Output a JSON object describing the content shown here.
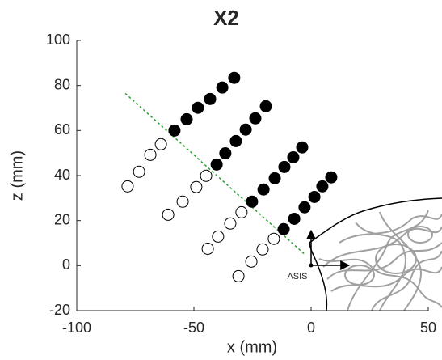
{
  "chart_data": {
    "type": "scatter",
    "title": "X2",
    "xlabel": "x (mm)",
    "ylabel": "z (mm)",
    "xlim": [
      -100,
      50
    ],
    "ylim": [
      -20,
      100
    ],
    "xticks": [
      -100,
      -50,
      0,
      50
    ],
    "yticks": [
      -20,
      0,
      20,
      40,
      60,
      80,
      100
    ],
    "annotation": "ASIS",
    "series": [
      {
        "filled": false,
        "color": "#000000",
        "x": [
          -78.3,
          -73.4,
          -68.6,
          -64.1,
          -61.0,
          -54.8,
          -49.0,
          -44.8,
          -44.1,
          -39.7,
          -34.5,
          -29.7,
          -31.0,
          -25.5,
          -20.7,
          -15.9
        ],
        "y": [
          35.2,
          41.7,
          49.2,
          53.9,
          22.6,
          28.4,
          34.9,
          39.9,
          7.5,
          12.9,
          18.7,
          23.7,
          -4.7,
          1.8,
          7.2,
          11.9
        ]
      },
      {
        "filled": true,
        "color": "#000000",
        "x": [
          -58.3,
          -53.1,
          -48.3,
          -43.1,
          -37.9,
          -32.8,
          -40.3,
          -36.6,
          -32.1,
          -27.9,
          -23.8,
          -19.3,
          -25.2,
          -20.3,
          -15.5,
          -11.4,
          -7.6,
          -3.8,
          -11.7,
          -7.2,
          -2.8,
          1.4,
          4.8,
          8.6
        ],
        "y": [
          60.0,
          65.0,
          70.1,
          74.0,
          79.1,
          83.4,
          44.9,
          49.9,
          55.3,
          60.4,
          65.4,
          70.8,
          28.4,
          33.8,
          38.8,
          43.8,
          48.1,
          52.5,
          16.2,
          20.8,
          25.9,
          30.5,
          35.2,
          39.2
        ]
      }
    ],
    "reference_line": {
      "color": "#2ca02c",
      "dashed": true,
      "x": [
        -79.3,
        -2.4
      ],
      "y": [
        76.5,
        4.7
      ]
    }
  }
}
